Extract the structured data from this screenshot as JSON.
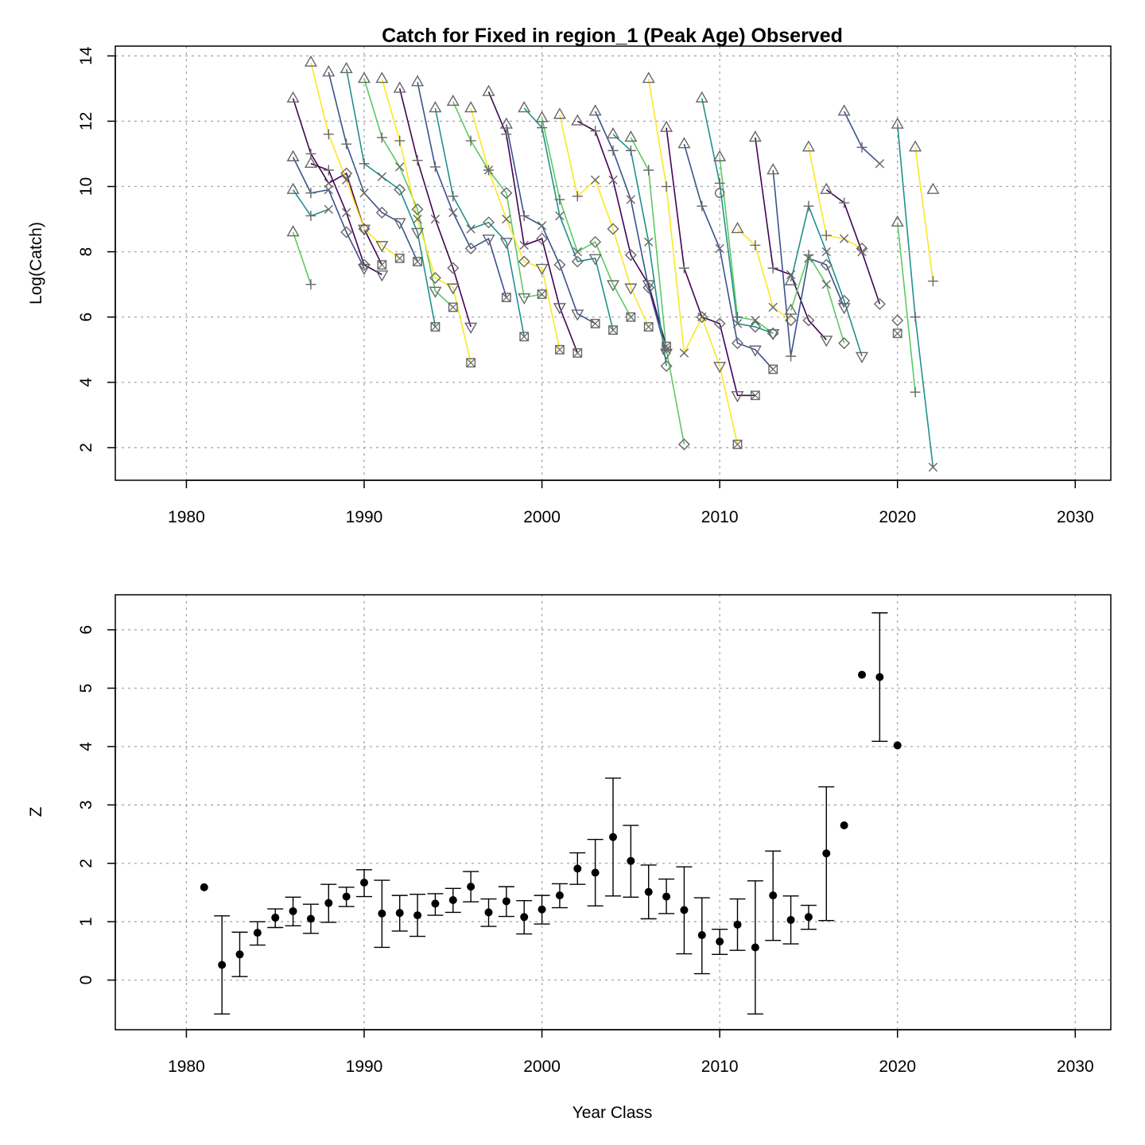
{
  "figure": {
    "title": "Catch for Fixed in region_1 (Peak Age) Observed",
    "palette": [
      "#440154",
      "#3b528b",
      "#21908c",
      "#5dc863",
      "#fde725"
    ],
    "point_color": "#666666"
  },
  "chart_data": [
    {
      "id": "top",
      "type": "line",
      "title": "Catch for Fixed in region_1 (Peak Age) Observed",
      "xlabel": "",
      "ylabel": "Log(Catch)",
      "xlim": [
        1976,
        2032
      ],
      "ylim": [
        1,
        14.3
      ],
      "xticks": [
        1980,
        1990,
        2000,
        2010,
        2020,
        2030
      ],
      "yticks": [
        2,
        4,
        6,
        8,
        10,
        12,
        14
      ],
      "grid": true,
      "legend": "none",
      "marker_sequence": [
        "triangle-up",
        "plus",
        "x",
        "diamond",
        "triangle-down",
        "boxed-x"
      ],
      "series": [
        {
          "start": 1986,
          "values": [
            12.7,
            11.0,
            10.1,
            10.4,
            8.7,
            7.6
          ]
        },
        {
          "start": 1986,
          "values": [
            10.9,
            9.8,
            9.9,
            8.6,
            7.5
          ]
        },
        {
          "start": 1986,
          "values": [
            9.9,
            9.1,
            9.3
          ]
        },
        {
          "start": 1986,
          "values": [
            8.6,
            7.0
          ]
        },
        {
          "start": 1987,
          "values": [
            13.8,
            11.6,
            10.2,
            8.7,
            8.2,
            7.8
          ]
        },
        {
          "start": 1987,
          "values": [
            10.7,
            10.5,
            9.2,
            7.6,
            7.3
          ]
        },
        {
          "start": 1988,
          "values": [
            13.5,
            11.3,
            9.8,
            9.2,
            8.9,
            7.7
          ]
        },
        {
          "start": 1989,
          "values": [
            13.6,
            10.7,
            10.3,
            9.9,
            8.6,
            5.7
          ]
        },
        {
          "start": 1990,
          "values": [
            13.3,
            11.5,
            10.6,
            9.3,
            6.8,
            6.3
          ]
        },
        {
          "start": 1991,
          "values": [
            13.3,
            11.4,
            9.0,
            7.2,
            6.9,
            4.6
          ]
        },
        {
          "start": 1992,
          "values": [
            13.0,
            10.8,
            9.0,
            7.5,
            5.7
          ]
        },
        {
          "start": 1993,
          "values": [
            13.2,
            10.6,
            9.2,
            8.1,
            8.4,
            6.6
          ]
        },
        {
          "start": 1994,
          "values": [
            12.4,
            9.7,
            8.7,
            8.9,
            8.3,
            5.4
          ]
        },
        {
          "start": 1995,
          "values": [
            12.6,
            11.4,
            10.5,
            9.8,
            6.6,
            6.7
          ]
        },
        {
          "start": 1996,
          "values": [
            12.4,
            10.5,
            9.0,
            7.7,
            7.5,
            5.0
          ]
        },
        {
          "start": 1997,
          "values": [
            12.9,
            11.6,
            8.2,
            8.4,
            6.3,
            4.9
          ]
        },
        {
          "start": 1998,
          "values": [
            11.9,
            9.1,
            8.8,
            7.6,
            6.1,
            5.8
          ]
        },
        {
          "start": 1999,
          "values": [
            12.4,
            11.8,
            9.1,
            7.7,
            7.8,
            5.6
          ]
        },
        {
          "start": 2000,
          "values": [
            12.1,
            9.6,
            8.0,
            8.3,
            7.0,
            6.0
          ]
        },
        {
          "start": 2001,
          "values": [
            12.2,
            9.7,
            10.2,
            8.7,
            6.9,
            5.7
          ]
        },
        {
          "start": 2002,
          "values": [
            12.0,
            11.7,
            10.2,
            7.9,
            7.0,
            5.1
          ]
        },
        {
          "start": 2003,
          "values": [
            12.3,
            11.1,
            9.6,
            6.9,
            4.9
          ]
        },
        {
          "start": 2004,
          "values": [
            11.6,
            11.1,
            8.3,
            4.5
          ]
        },
        {
          "start": 2005,
          "values": [
            11.5,
            10.5,
            5.0,
            2.1
          ]
        },
        {
          "start": 2006,
          "values": [
            13.3,
            10.0,
            4.9,
            6.0,
            4.5,
            2.1
          ]
        },
        {
          "start": 2007,
          "values": [
            11.8,
            7.5,
            6.0,
            5.8,
            3.6,
            3.6
          ]
        },
        {
          "start": 2008,
          "values": [
            11.3,
            9.4,
            8.1,
            5.2,
            5.0,
            4.4
          ]
        },
        {
          "start": 2009,
          "values": [
            12.7,
            10.1,
            5.8,
            5.7,
            5.5
          ]
        },
        {
          "start": 2010,
          "values": [
            10.9,
            6.0,
            5.9,
            5.5
          ]
        },
        {
          "start": 2011,
          "values": [
            8.7,
            8.2,
            6.3,
            5.9
          ]
        },
        {
          "start": 2012,
          "values": [
            11.5,
            7.5,
            7.3,
            5.9,
            5.3
          ]
        },
        {
          "start": 2013,
          "values": [
            10.5,
            4.8,
            7.8,
            7.6,
            6.3
          ]
        },
        {
          "start": 2014,
          "values": [
            7.1,
            9.4,
            8.0,
            6.5,
            4.8
          ]
        },
        {
          "start": 2014,
          "values": [
            6.2,
            7.9,
            7.0,
            5.2
          ]
        },
        {
          "start": 2015,
          "values": [
            11.2,
            8.5,
            8.4,
            8.1
          ]
        },
        {
          "start": 2016,
          "values": [
            9.9,
            9.5,
            8.0,
            6.4
          ]
        },
        {
          "start": 2017,
          "values": [
            12.3,
            11.2,
            10.7
          ]
        },
        {
          "start": 2020,
          "values": [
            11.9,
            6.0,
            1.4
          ]
        },
        {
          "start": 2020,
          "values": [
            8.9,
            3.7
          ]
        },
        {
          "start": 2021,
          "values": [
            11.2,
            7.1
          ]
        },
        {
          "start": 2022,
          "values": [
            9.9
          ]
        }
      ],
      "extra_points": [
        {
          "x": 2010,
          "y": 9.8,
          "marker": "circle"
        },
        {
          "x": 2020,
          "y": 5.9,
          "marker": "diamond"
        },
        {
          "x": 2020,
          "y": 5.5,
          "marker": "boxed-x"
        }
      ]
    },
    {
      "id": "bottom",
      "type": "scatter",
      "title": "",
      "xlabel": "Year Class",
      "ylabel": "Z",
      "xlim": [
        1976,
        2032
      ],
      "ylim": [
        -0.85,
        6.6
      ],
      "xticks": [
        1980,
        1990,
        2000,
        2010,
        2020,
        2030
      ],
      "yticks": [
        0,
        1,
        2,
        3,
        4,
        5,
        6
      ],
      "grid": true,
      "legend": "none",
      "points": [
        {
          "x": 1981,
          "y": 1.59
        },
        {
          "x": 1982,
          "y": 0.26,
          "lo": -0.58,
          "hi": 1.1
        },
        {
          "x": 1983,
          "y": 0.44,
          "lo": 0.06,
          "hi": 0.82
        },
        {
          "x": 1984,
          "y": 0.81,
          "lo": 0.6,
          "hi": 1.0
        },
        {
          "x": 1985,
          "y": 1.07,
          "lo": 0.9,
          "hi": 1.22
        },
        {
          "x": 1986,
          "y": 1.18,
          "lo": 0.93,
          "hi": 1.42
        },
        {
          "x": 1987,
          "y": 1.05,
          "lo": 0.8,
          "hi": 1.3
        },
        {
          "x": 1988,
          "y": 1.32,
          "lo": 0.99,
          "hi": 1.64
        },
        {
          "x": 1989,
          "y": 1.43,
          "lo": 1.26,
          "hi": 1.59
        },
        {
          "x": 1990,
          "y": 1.67,
          "lo": 1.43,
          "hi": 1.89
        },
        {
          "x": 1991,
          "y": 1.14,
          "lo": 0.56,
          "hi": 1.71
        },
        {
          "x": 1992,
          "y": 1.15,
          "lo": 0.84,
          "hi": 1.45
        },
        {
          "x": 1993,
          "y": 1.11,
          "lo": 0.75,
          "hi": 1.47
        },
        {
          "x": 1994,
          "y": 1.31,
          "lo": 1.11,
          "hi": 1.48
        },
        {
          "x": 1995,
          "y": 1.37,
          "lo": 1.16,
          "hi": 1.57
        },
        {
          "x": 1996,
          "y": 1.6,
          "lo": 1.34,
          "hi": 1.86
        },
        {
          "x": 1997,
          "y": 1.16,
          "lo": 0.92,
          "hi": 1.39
        },
        {
          "x": 1998,
          "y": 1.35,
          "lo": 1.09,
          "hi": 1.6
        },
        {
          "x": 1999,
          "y": 1.08,
          "lo": 0.79,
          "hi": 1.36
        },
        {
          "x": 2000,
          "y": 1.21,
          "lo": 0.96,
          "hi": 1.45
        },
        {
          "x": 2001,
          "y": 1.45,
          "lo": 1.24,
          "hi": 1.65
        },
        {
          "x": 2002,
          "y": 1.91,
          "lo": 1.64,
          "hi": 2.18
        },
        {
          "x": 2003,
          "y": 1.84,
          "lo": 1.27,
          "hi": 2.41
        },
        {
          "x": 2004,
          "y": 2.45,
          "lo": 1.44,
          "hi": 3.46
        },
        {
          "x": 2005,
          "y": 2.04,
          "lo": 1.42,
          "hi": 2.65
        },
        {
          "x": 2006,
          "y": 1.51,
          "lo": 1.05,
          "hi": 1.97
        },
        {
          "x": 2007,
          "y": 1.43,
          "lo": 1.14,
          "hi": 1.73
        },
        {
          "x": 2008,
          "y": 1.2,
          "lo": 0.45,
          "hi": 1.94
        },
        {
          "x": 2009,
          "y": 0.77,
          "lo": 0.11,
          "hi": 1.41
        },
        {
          "x": 2010,
          "y": 0.66,
          "lo": 0.44,
          "hi": 0.87
        },
        {
          "x": 2011,
          "y": 0.95,
          "lo": 0.51,
          "hi": 1.39
        },
        {
          "x": 2012,
          "y": 0.56,
          "lo": -0.58,
          "hi": 1.7
        },
        {
          "x": 2013,
          "y": 1.45,
          "lo": 0.68,
          "hi": 2.21
        },
        {
          "x": 2014,
          "y": 1.03,
          "lo": 0.62,
          "hi": 1.44
        },
        {
          "x": 2015,
          "y": 1.08,
          "lo": 0.87,
          "hi": 1.28
        },
        {
          "x": 2016,
          "y": 2.17,
          "lo": 1.02,
          "hi": 3.31
        },
        {
          "x": 2017,
          "y": 2.65
        },
        {
          "x": 2018,
          "y": 5.23
        },
        {
          "x": 2019,
          "y": 5.19,
          "lo": 4.09,
          "hi": 6.29
        },
        {
          "x": 2020,
          "y": 4.02
        }
      ]
    }
  ]
}
